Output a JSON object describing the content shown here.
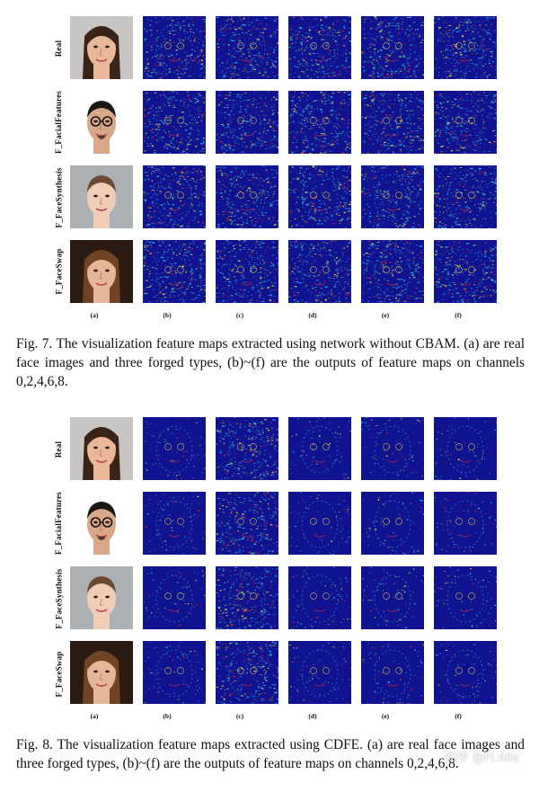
{
  "figures": [
    {
      "id": "fig7",
      "row_labels": [
        "Real",
        "F_FacialFeatures",
        "F_FaceSynthesis",
        "F_FaceSwap"
      ],
      "column_labels": [
        "(a)",
        "(b)",
        "(c)",
        "(d)",
        "(e)",
        "(f)"
      ],
      "caption": "Fig. 7.   The visualization feature maps extracted using network without CBAM. (a) are real face images and three forged types, (b)~(f) are the outputs of feature maps on channels 0,2,4,6,8."
    },
    {
      "id": "fig8",
      "row_labels": [
        "Real",
        "F_FacialFeatures",
        "F_FaceSynthesis",
        "F_FaceSwap"
      ],
      "column_labels": [
        "(a)",
        "(b)",
        "(c)",
        "(d)",
        "(e)",
        "(f)"
      ],
      "caption": "Fig. 8.   The visualization feature maps extracted using CDFE. (a) are real face images and three forged types, (b)~(f) are the outputs of feature maps on channels 0,2,4,6,8."
    }
  ],
  "watermark": "知乎 @Fl.Alio",
  "colors": {
    "map_background": "#10138f",
    "map_cyan": "#29c3e6",
    "map_yellow": "#f2e33a",
    "map_red": "#e7332a"
  }
}
